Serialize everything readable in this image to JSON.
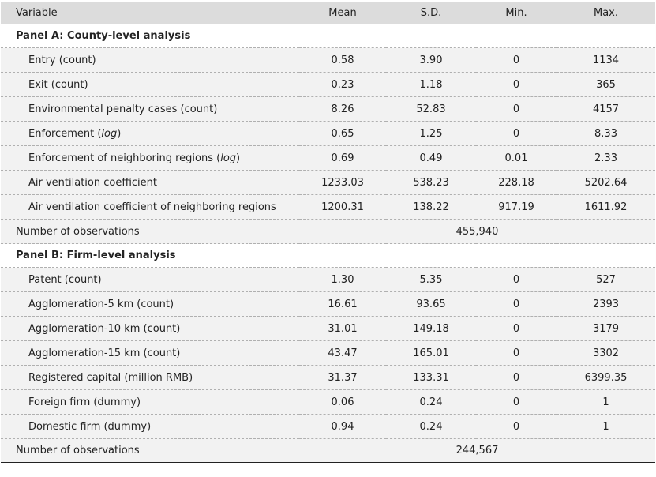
{
  "header": {
    "variable": "Variable",
    "mean": "Mean",
    "sd": "S.D.",
    "min": "Min.",
    "max": "Max."
  },
  "panel_a": {
    "title": "Panel A: County-level analysis",
    "rows": [
      {
        "pre": "Entry (count)",
        "it": "",
        "post": "",
        "mean": "0.58",
        "sd": "3.90",
        "min": "0",
        "max": "1134"
      },
      {
        "pre": "Exit (count)",
        "it": "",
        "post": "",
        "mean": "0.23",
        "sd": "1.18",
        "min": "0",
        "max": "365"
      },
      {
        "pre": "Environmental penalty cases (count)",
        "it": "",
        "post": "",
        "mean": "8.26",
        "sd": "52.83",
        "min": "0",
        "max": "4157"
      },
      {
        "pre": "Enforcement (",
        "it": "log",
        "post": ")",
        "mean": "0.65",
        "sd": "1.25",
        "min": "0",
        "max": "8.33"
      },
      {
        "pre": "Enforcement of neighboring regions (",
        "it": "log",
        "post": ")",
        "mean": "0.69",
        "sd": "0.49",
        "min": "0.01",
        "max": "2.33"
      },
      {
        "pre": "Air ventilation coefficient",
        "it": "",
        "post": "",
        "mean": "1233.03",
        "sd": "538.23",
        "min": "228.18",
        "max": "5202.64"
      },
      {
        "pre": "Air ventilation coefficient of neighboring regions",
        "it": "",
        "post": "",
        "mean": "1200.31",
        "sd": "138.22",
        "min": "917.19",
        "max": "1611.92"
      }
    ],
    "obs_label": "Number of observations",
    "obs_value": "455,940"
  },
  "panel_b": {
    "title": "Panel B: Firm-level analysis",
    "rows": [
      {
        "pre": "Patent (count)",
        "it": "",
        "post": "",
        "mean": "1.30",
        "sd": "5.35",
        "min": "0",
        "max": "527"
      },
      {
        "pre": "Agglomeration-5 km (count)",
        "it": "",
        "post": "",
        "mean": "16.61",
        "sd": "93.65",
        "min": "0",
        "max": "2393"
      },
      {
        "pre": "Agglomeration-10 km (count)",
        "it": "",
        "post": "",
        "mean": "31.01",
        "sd": "149.18",
        "min": "0",
        "max": "3179"
      },
      {
        "pre": "Agglomeration-15 km (count)",
        "it": "",
        "post": "",
        "mean": "43.47",
        "sd": "165.01",
        "min": "0",
        "max": "3302"
      },
      {
        "pre": "Registered capital (million RMB)",
        "it": "",
        "post": "",
        "mean": "31.37",
        "sd": "133.31",
        "min": "0",
        "max": "6399.35"
      },
      {
        "pre": "Foreign firm (dummy)",
        "it": "",
        "post": "",
        "mean": "0.06",
        "sd": "0.24",
        "min": "0",
        "max": "1"
      },
      {
        "pre": "Domestic firm (dummy)",
        "it": "",
        "post": "",
        "mean": "0.94",
        "sd": "0.24",
        "min": "0",
        "max": "1"
      }
    ],
    "obs_label": "Number of observations",
    "obs_value": "244,567"
  }
}
